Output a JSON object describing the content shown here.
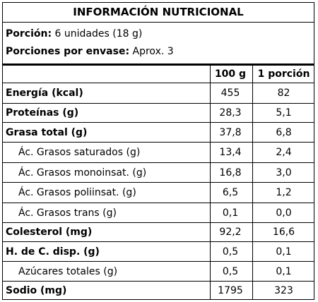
{
  "title": "INFORMACIÓN NUTRICIONAL",
  "serving": {
    "portion_label": "Porción:",
    "portion_value": "6 unidades (18 g)",
    "per_container_label": "Porciones por envase:",
    "per_container_value": "Aprox. 3"
  },
  "columns": {
    "per100": "100 g",
    "perServing": "1 porción"
  },
  "rows": [
    {
      "name": "Energía (kcal)",
      "per100": "455",
      "perServing": "82",
      "bold": true,
      "sub": false
    },
    {
      "name": "Proteínas (g)",
      "per100": "28,3",
      "perServing": "5,1",
      "bold": true,
      "sub": false
    },
    {
      "name": "Grasa total (g)",
      "per100": "37,8",
      "perServing": "6,8",
      "bold": true,
      "sub": false
    },
    {
      "name": "Ác. Grasos saturados (g)",
      "per100": "13,4",
      "perServing": "2,4",
      "bold": false,
      "sub": true
    },
    {
      "name": "Ác. Grasos monoinsat. (g)",
      "per100": "16,8",
      "perServing": "3,0",
      "bold": false,
      "sub": true
    },
    {
      "name": "Ác. Grasos poliinsat. (g)",
      "per100": "6,5",
      "perServing": "1,2",
      "bold": false,
      "sub": true
    },
    {
      "name": "Ác. Grasos trans (g)",
      "per100": "0,1",
      "perServing": "0,0",
      "bold": false,
      "sub": true
    },
    {
      "name": "Colesterol (mg)",
      "per100": "92,2",
      "perServing": "16,6",
      "bold": true,
      "sub": false
    },
    {
      "name": "H. de C. disp. (g)",
      "per100": "0,5",
      "perServing": "0,1",
      "bold": true,
      "sub": false
    },
    {
      "name": "Azúcares totales (g)",
      "per100": "0,5",
      "perServing": "0,1",
      "bold": false,
      "sub": true
    },
    {
      "name": "Sodio (mg)",
      "per100": "1795",
      "perServing": "323",
      "bold": true,
      "sub": false
    }
  ]
}
